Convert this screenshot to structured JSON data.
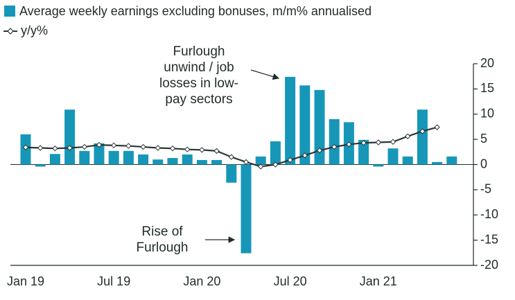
{
  "chart_data": {
    "type": "bar",
    "categories": [
      "Jan 19",
      null,
      null,
      null,
      null,
      null,
      "Jul 19",
      null,
      null,
      null,
      null,
      null,
      "Jan 20",
      null,
      null,
      null,
      null,
      null,
      "Jul 20",
      null,
      null,
      null,
      null,
      null,
      "Jan 21",
      null,
      null,
      null,
      null,
      null
    ],
    "series": [
      {
        "name": "Average weekly earnings excluding bonuses, m/m% annualised",
        "type": "bar",
        "color": "#1797b8",
        "values": [
          6.0,
          -0.4,
          2.1,
          10.9,
          2.7,
          4.2,
          2.7,
          2.7,
          2.0,
          1.0,
          1.3,
          2.0,
          0.9,
          0.9,
          -3.6,
          -17.6,
          1.6,
          4.6,
          17.4,
          15.7,
          14.8,
          9.0,
          8.4,
          4.9,
          -0.4,
          3.2,
          1.6,
          10.9,
          0.5,
          1.6
        ]
      },
      {
        "name": "y/y%",
        "type": "line",
        "color": "#2b3636",
        "values": [
          3.4,
          3.3,
          3.2,
          3.3,
          3.5,
          3.9,
          3.8,
          3.7,
          3.5,
          3.3,
          3.2,
          3.0,
          2.9,
          2.7,
          1.5,
          0.5,
          -0.4,
          0.0,
          0.9,
          1.8,
          2.8,
          3.5,
          4.0,
          4.3,
          4.4,
          4.5,
          5.6,
          6.6,
          7.4,
          null
        ]
      }
    ],
    "ylim": [
      -20,
      20
    ],
    "yticks": [
      -20,
      -15,
      -10,
      -5,
      0,
      5,
      10,
      15,
      20
    ],
    "annotations": [
      {
        "lines": [
          "Furlough",
          "unwind / job",
          "losses in low-",
          "pay sectors"
        ]
      },
      {
        "lines": [
          "Rise of",
          "Furlough"
        ]
      }
    ]
  }
}
